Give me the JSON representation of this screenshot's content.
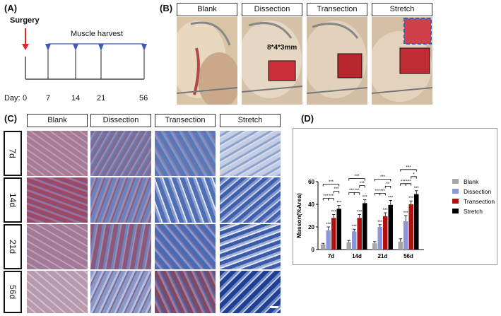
{
  "panelA": {
    "label": "(A)",
    "surgery": "Surgery",
    "harvest": "Muscle harvest",
    "day_prefix": "Day:",
    "days": [
      "0",
      "7",
      "14",
      "21",
      "56"
    ],
    "colors": {
      "arrow": "#e8232a",
      "marker": "#3b5eb8"
    }
  },
  "panelB": {
    "label": "(B)",
    "headers": [
      "Blank",
      "Dissection",
      "Transection",
      "Stretch"
    ],
    "dimension": "8*4*3mm"
  },
  "panelC": {
    "label": "(C)",
    "headers": [
      "Blank",
      "Dissection",
      "Transection",
      "Stretch"
    ],
    "rows": [
      "7d",
      "14d",
      "21d",
      "56d"
    ]
  },
  "panelD": {
    "label": "(D)",
    "legend": [
      "Blank",
      "Dissection",
      "Transection",
      "Stretch"
    ],
    "sig_labels": {
      "7d": [
        "***",
        "***",
        "***",
        "***",
        "***",
        "***",
        "***",
        "***"
      ],
      "14d": [
        "***",
        "***",
        "***",
        "***",
        "***",
        "***",
        "***",
        "***"
      ],
      "21d": [
        "***",
        "***",
        "***",
        "***",
        "***",
        "**",
        "***",
        "***"
      ],
      "56d": [
        "***",
        "***",
        "***",
        "***",
        "***",
        "*",
        "***",
        "***"
      ]
    }
  },
  "chart_data": {
    "type": "bar",
    "categories": [
      "7d",
      "14d",
      "21d",
      "56d"
    ],
    "series": [
      {
        "name": "Blank",
        "values": [
          4.5,
          6.5,
          5.5,
          7
        ],
        "errors": [
          1,
          1.5,
          1.5,
          2.5
        ],
        "color": "#a6a6a6"
      },
      {
        "name": "Dissection",
        "values": [
          17,
          16,
          20,
          25
        ],
        "errors": [
          3,
          2,
          2,
          5
        ],
        "color": "#8f96d8"
      },
      {
        "name": "Transection",
        "values": [
          28,
          28,
          29.5,
          40
        ],
        "errors": [
          3,
          3,
          3,
          3
        ],
        "color": "#b01010"
      },
      {
        "name": "Stretch",
        "values": [
          36,
          41,
          39.5,
          49
        ],
        "errors": [
          3,
          3,
          4,
          3
        ],
        "color": "#000000"
      }
    ],
    "ylabel": "Masson(%Area)",
    "ylim": [
      0,
      60
    ],
    "yticks": [
      "0",
      "20",
      "40",
      "60"
    ],
    "legend_position": "right"
  }
}
